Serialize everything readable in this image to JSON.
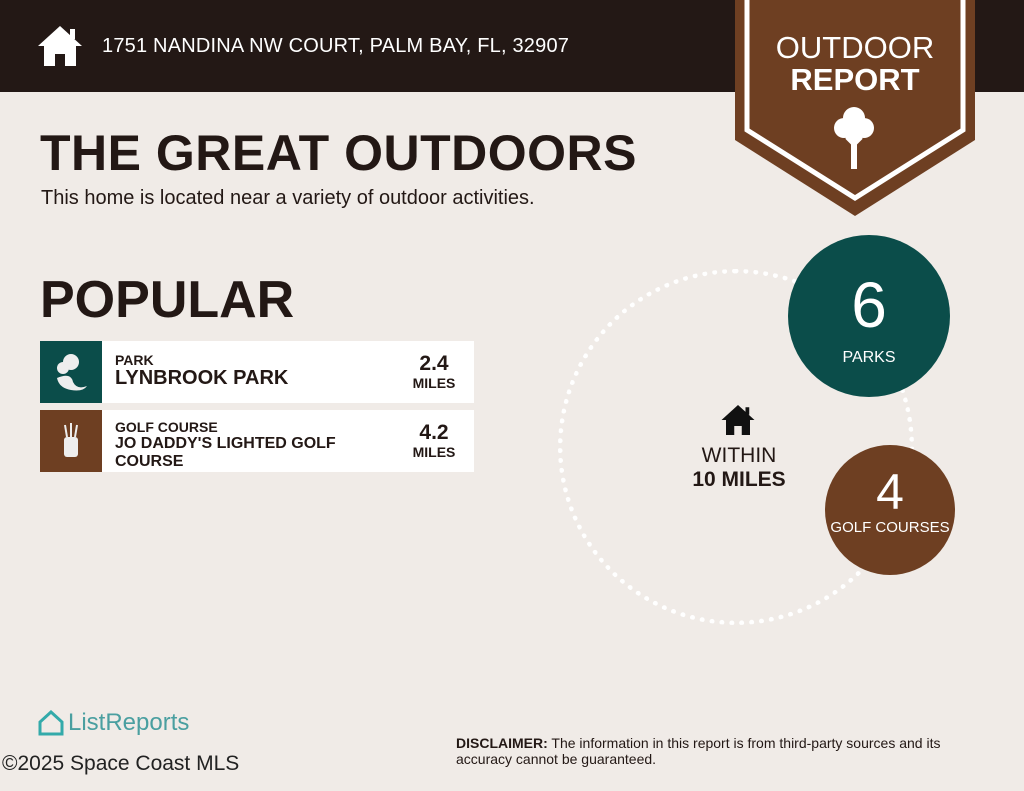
{
  "header": {
    "address": "1751 NANDINA NW COURT, PALM BAY, FL, 32907",
    "icon": "home-icon"
  },
  "badge": {
    "line1": "OUTDOOR",
    "line2": "REPORT",
    "icon": "tree-icon",
    "color": "#6e3f22"
  },
  "title": "THE GREAT OUTDOORS",
  "subtitle": "This home is located near a variety of outdoor activities.",
  "popular": {
    "heading": "POPULAR",
    "items": [
      {
        "category": "PARK",
        "name": "LYNBROOK PARK",
        "distance": "2.4",
        "unit": "MILES",
        "icon": "park-icon",
        "color": "#0b4d4a"
      },
      {
        "category": "GOLF COURSE",
        "name": "JO DADDY'S LIGHTED GOLF COURSE",
        "distance": "4.2",
        "unit": "MILES",
        "icon": "golf-bag-icon",
        "color": "#6e3f22"
      }
    ]
  },
  "radius": {
    "line1": "WITHIN",
    "line2": "10 MILES"
  },
  "counts": [
    {
      "value": "6",
      "label": "PARKS",
      "color": "#0b4d4a"
    },
    {
      "value": "4",
      "label": "GOLF COURSES",
      "color": "#6e3f22"
    }
  ],
  "footer": {
    "logo": "ListReports",
    "copyright": "©2025 Space Coast MLS",
    "disclaimer_label": "DISCLAIMER:",
    "disclaimer": " The information in this report is from third-party sources and its accuracy cannot be guaranteed."
  }
}
